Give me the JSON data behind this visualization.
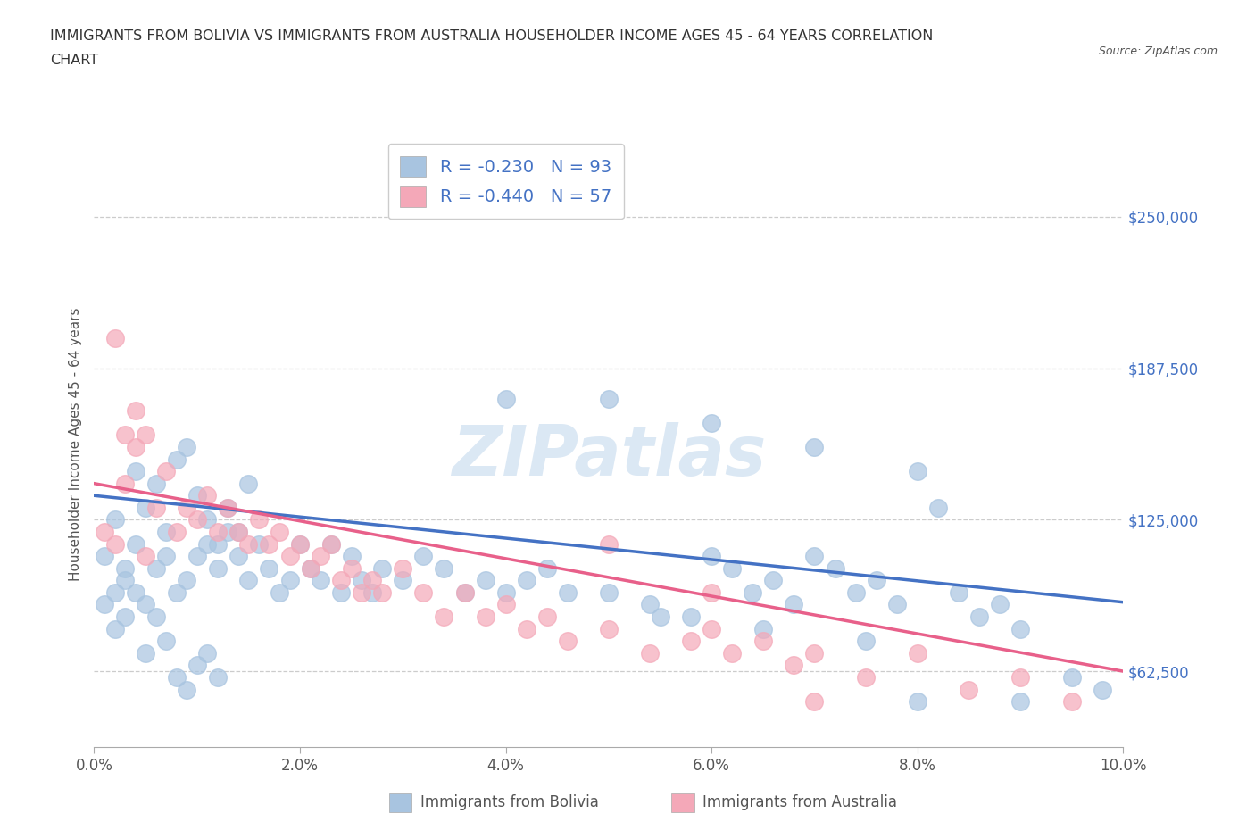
{
  "title_line1": "IMMIGRANTS FROM BOLIVIA VS IMMIGRANTS FROM AUSTRALIA HOUSEHOLDER INCOME AGES 45 - 64 YEARS CORRELATION",
  "title_line2": "CHART",
  "source_text": "Source: ZipAtlas.com",
  "ylabel": "Householder Income Ages 45 - 64 years",
  "xlim": [
    0.0,
    0.1
  ],
  "ylim": [
    31250,
    281250
  ],
  "xtick_labels": [
    "0.0%",
    "2.0%",
    "4.0%",
    "6.0%",
    "8.0%",
    "10.0%"
  ],
  "xtick_vals": [
    0.0,
    0.02,
    0.04,
    0.06,
    0.08,
    0.1
  ],
  "ytick_vals": [
    62500,
    125000,
    187500,
    250000
  ],
  "ytick_labels": [
    "$62,500",
    "$125,000",
    "$187,500",
    "$250,000"
  ],
  "bolivia_color": "#a8c4e0",
  "australia_color": "#f4a8b8",
  "bolivia_line_color": "#4472c4",
  "australia_line_color": "#e8608a",
  "R_bolivia": -0.23,
  "N_bolivia": 93,
  "R_australia": -0.44,
  "N_australia": 57,
  "legend_label_bolivia": "Immigrants from Bolivia",
  "legend_label_australia": "Immigrants from Australia",
  "watermark": "ZIPatlas",
  "background_color": "#ffffff",
  "bolivia_line_x": [
    0.0,
    0.1
  ],
  "bolivia_line_y": [
    135000,
    91000
  ],
  "australia_line_x": [
    0.0,
    0.1
  ],
  "australia_line_y": [
    140000,
    62500
  ],
  "bolivia_scatter_x": [
    0.001,
    0.002,
    0.003,
    0.004,
    0.005,
    0.006,
    0.007,
    0.008,
    0.009,
    0.01,
    0.011,
    0.012,
    0.013,
    0.014,
    0.015,
    0.002,
    0.003,
    0.004,
    0.005,
    0.006,
    0.007,
    0.008,
    0.009,
    0.01,
    0.011,
    0.012,
    0.013,
    0.014,
    0.015,
    0.016,
    0.017,
    0.018,
    0.019,
    0.02,
    0.021,
    0.022,
    0.023,
    0.024,
    0.025,
    0.026,
    0.027,
    0.028,
    0.03,
    0.032,
    0.034,
    0.036,
    0.038,
    0.04,
    0.042,
    0.044,
    0.046,
    0.05,
    0.054,
    0.058,
    0.06,
    0.062,
    0.064,
    0.066,
    0.068,
    0.07,
    0.072,
    0.074,
    0.076,
    0.078,
    0.08,
    0.082,
    0.084,
    0.086,
    0.088,
    0.09,
    0.001,
    0.002,
    0.003,
    0.004,
    0.005,
    0.006,
    0.007,
    0.008,
    0.009,
    0.01,
    0.011,
    0.012,
    0.04,
    0.05,
    0.06,
    0.07,
    0.08,
    0.09,
    0.095,
    0.098,
    0.055,
    0.065,
    0.075
  ],
  "bolivia_scatter_y": [
    110000,
    125000,
    105000,
    145000,
    130000,
    140000,
    120000,
    150000,
    155000,
    135000,
    125000,
    115000,
    130000,
    120000,
    140000,
    95000,
    100000,
    115000,
    90000,
    105000,
    110000,
    95000,
    100000,
    110000,
    115000,
    105000,
    120000,
    110000,
    100000,
    115000,
    105000,
    95000,
    100000,
    115000,
    105000,
    100000,
    115000,
    95000,
    110000,
    100000,
    95000,
    105000,
    100000,
    110000,
    105000,
    95000,
    100000,
    95000,
    100000,
    105000,
    95000,
    95000,
    90000,
    85000,
    110000,
    105000,
    95000,
    100000,
    90000,
    110000,
    105000,
    95000,
    100000,
    90000,
    145000,
    130000,
    95000,
    85000,
    90000,
    80000,
    90000,
    80000,
    85000,
    95000,
    70000,
    85000,
    75000,
    60000,
    55000,
    65000,
    70000,
    60000,
    175000,
    175000,
    165000,
    155000,
    50000,
    50000,
    60000,
    55000,
    85000,
    80000,
    75000
  ],
  "australia_scatter_x": [
    0.001,
    0.002,
    0.003,
    0.004,
    0.005,
    0.006,
    0.007,
    0.008,
    0.009,
    0.01,
    0.011,
    0.012,
    0.013,
    0.014,
    0.015,
    0.016,
    0.017,
    0.018,
    0.019,
    0.02,
    0.021,
    0.022,
    0.023,
    0.024,
    0.025,
    0.026,
    0.027,
    0.028,
    0.03,
    0.032,
    0.034,
    0.036,
    0.038,
    0.04,
    0.042,
    0.044,
    0.046,
    0.05,
    0.054,
    0.058,
    0.06,
    0.062,
    0.065,
    0.068,
    0.07,
    0.075,
    0.08,
    0.085,
    0.09,
    0.095,
    0.002,
    0.003,
    0.004,
    0.005,
    0.05,
    0.06,
    0.07
  ],
  "australia_scatter_y": [
    120000,
    115000,
    140000,
    155000,
    160000,
    130000,
    145000,
    120000,
    130000,
    125000,
    135000,
    120000,
    130000,
    120000,
    115000,
    125000,
    115000,
    120000,
    110000,
    115000,
    105000,
    110000,
    115000,
    100000,
    105000,
    95000,
    100000,
    95000,
    105000,
    95000,
    85000,
    95000,
    85000,
    90000,
    80000,
    85000,
    75000,
    80000,
    70000,
    75000,
    80000,
    70000,
    75000,
    65000,
    70000,
    60000,
    70000,
    55000,
    60000,
    50000,
    200000,
    160000,
    170000,
    110000,
    115000,
    95000,
    50000
  ]
}
